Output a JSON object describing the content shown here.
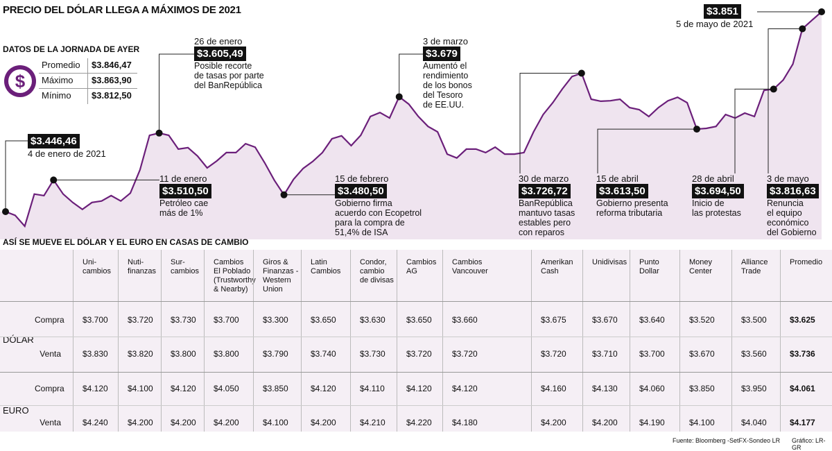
{
  "title": "PRECIO DEL DÓLAR LLEGA A MÁXIMOS DE 2021",
  "jornada": {
    "title": "DATOS DE LA JORNADA DE AYER",
    "rows": [
      {
        "label": "Promedio",
        "value": "$3.846,47"
      },
      {
        "label": "Máximo",
        "value": "$3.863,90"
      },
      {
        "label": "Mínimo",
        "value": "$3.812,50"
      }
    ]
  },
  "chart_data": {
    "type": "line",
    "color": "#6b1f7a",
    "area_color": "#efe4ef",
    "categories": [
      "4 de enero de 2021",
      null,
      null,
      null,
      null,
      "11 de enero",
      null,
      null,
      null,
      null,
      null,
      null,
      null,
      null,
      null,
      null,
      "26 de enero",
      null,
      null,
      null,
      null,
      null,
      null,
      null,
      null,
      null,
      null,
      null,
      null,
      "15 de febrero",
      null,
      null,
      null,
      null,
      null,
      null,
      null,
      null,
      null,
      null,
      null,
      "3 de marzo",
      null,
      null,
      null,
      null,
      null,
      null,
      null,
      null,
      null,
      null,
      null,
      null,
      null,
      null,
      null,
      null,
      null,
      null,
      "30 de marzo",
      null,
      null,
      null,
      null,
      null,
      null,
      null,
      null,
      null,
      null,
      null,
      "15 de abril",
      null,
      null,
      null,
      null,
      null,
      null,
      null,
      "28 de abril",
      null,
      null,
      "3 de mayo",
      null,
      "5 de mayo de 2021"
    ],
    "values": [
      3446.46,
      3439,
      3417,
      3482,
      3479,
      3510.5,
      3482,
      3465,
      3451,
      3465,
      3468,
      3479,
      3468,
      3484,
      3531,
      3601,
      3605.49,
      3601,
      3573,
      3576,
      3559,
      3535,
      3549,
      3566,
      3566,
      3584,
      3577,
      3545,
      3510,
      3480.5,
      3512,
      3534,
      3548,
      3566,
      3594,
      3600,
      3580,
      3601,
      3639,
      3647,
      3636,
      3679,
      3664,
      3639,
      3619,
      3608,
      3563,
      3555,
      3573,
      3573,
      3566,
      3577,
      3563,
      3563,
      3566,
      3608,
      3643,
      3667,
      3695,
      3720,
      3726.72,
      3674,
      3670,
      3671,
      3674,
      3657,
      3653,
      3639,
      3657,
      3671,
      3678,
      3667,
      3613.5,
      3615,
      3619,
      3643,
      3636,
      3646,
      3639,
      3692,
      3694.5,
      3713,
      3745,
      3816.63,
      3834,
      3851
    ],
    "value_labels": [
      "$3.446,46",
      null,
      null,
      null,
      null,
      "$3.510,50",
      null,
      null,
      null,
      null,
      null,
      null,
      null,
      null,
      null,
      null,
      "$3.605,49",
      null,
      null,
      null,
      null,
      null,
      null,
      null,
      null,
      null,
      null,
      null,
      null,
      "$3.480,50",
      null,
      null,
      null,
      null,
      null,
      null,
      null,
      null,
      null,
      null,
      null,
      "$3.679",
      null,
      null,
      null,
      null,
      null,
      null,
      null,
      null,
      null,
      null,
      null,
      null,
      null,
      null,
      null,
      null,
      null,
      null,
      "$3.726,72",
      null,
      null,
      null,
      null,
      null,
      null,
      null,
      null,
      null,
      null,
      null,
      "$3.613,50",
      null,
      null,
      null,
      null,
      null,
      null,
      null,
      "$3.694,50",
      null,
      null,
      "$3.816,63",
      null,
      "$3.851"
    ],
    "notes": [
      null,
      null,
      null,
      null,
      null,
      "Petróleo cae\nmás de 1%",
      null,
      null,
      null,
      null,
      null,
      null,
      null,
      null,
      null,
      null,
      "Posible recorte\nde tasas por parte\ndel BanRepública",
      null,
      null,
      null,
      null,
      null,
      null,
      null,
      null,
      null,
      null,
      null,
      null,
      "Gobierno firma\nacuerdo con Ecopetrol\npara la compra de\n51,4% de ISA",
      null,
      null,
      null,
      null,
      null,
      null,
      null,
      null,
      null,
      null,
      null,
      "Aumentó el\nrendimiento\nde los bonos\ndel Tesoro\nde EE.UU.",
      null,
      null,
      null,
      null,
      null,
      null,
      null,
      null,
      null,
      null,
      null,
      null,
      null,
      null,
      null,
      null,
      null,
      null,
      "BanRepública\nmantuvo tasas\nestables pero\ncon reparos",
      null,
      null,
      null,
      null,
      null,
      null,
      null,
      null,
      null,
      null,
      null,
      "Gobierno presenta\nreforma tributaria",
      null,
      null,
      null,
      null,
      null,
      null,
      null,
      "Inicio de\nlas protestas",
      null,
      null,
      "Renuncia\nel equipo\neconómico\ndel Gobierno",
      null,
      null
    ]
  },
  "table": {
    "title": "ASÍ SE MUEVE EL DÓLAR Y EL EURO EN CASAS DE CAMBIO",
    "columns": [
      "Uni-\ncambios",
      "Nuti-\nfinanzas",
      "Sur-\ncambios",
      "Cambios\nEl Poblado\n(Trustworthy\n& Nearby)",
      "Giros &\nFinanzas -\nWestern\nUnion",
      "Latin\nCambios",
      "Condor,\ncambio\nde divisas",
      "Cambios\nAG",
      "Cambios\nVancouver",
      "Amerikan\nCash",
      "Unidivisas",
      "Punto\nDollar",
      "Money\nCenter",
      "Alliance\nTrade",
      "Promedio"
    ],
    "groups": [
      {
        "name": "DÓLAR",
        "rows": [
          {
            "label": "Compra",
            "cells": [
              "$3.700",
              "$3.720",
              "$3.730",
              "$3.700",
              "$3.300",
              "$3.650",
              "$3.630",
              "$3.650",
              "$3.660",
              "$3.675",
              "$3.670",
              "$3.640",
              "$3.520",
              "$3.500",
              "$3.625"
            ]
          },
          {
            "label": "Venta",
            "cells": [
              "$3.830",
              "$3.820",
              "$3.800",
              "$3.800",
              "$3.790",
              "$3.740",
              "$3.730",
              "$3.720",
              "$3.720",
              "$3.720",
              "$3.710",
              "$3.700",
              "$3.670",
              "$3.560",
              "$3.736"
            ]
          }
        ]
      },
      {
        "name": "EURO",
        "rows": [
          {
            "label": "Compra",
            "cells": [
              "$4.120",
              "$4.100",
              "$4.120",
              "$4.050",
              "$3.850",
              "$4.120",
              "$4.110",
              "$4.120",
              "$4.120",
              "$4.160",
              "$4.130",
              "$4.060",
              "$3.850",
              "$3.950",
              "$4.061"
            ]
          },
          {
            "label": "Venta",
            "cells": [
              "$4.240",
              "$4.200",
              "$4.200",
              "$4.200",
              "$4.100",
              "$4.200",
              "$4.210",
              "$4.220",
              "$4.180",
              "$4.200",
              "$4.200",
              "$4.190",
              "$4.100",
              "$4.040",
              "$4.177"
            ]
          }
        ]
      }
    ]
  },
  "footer": {
    "source": "Fuente: Bloomberg -SetFX-Sondeo LR",
    "credit": "Gráfico: LR-GR"
  }
}
